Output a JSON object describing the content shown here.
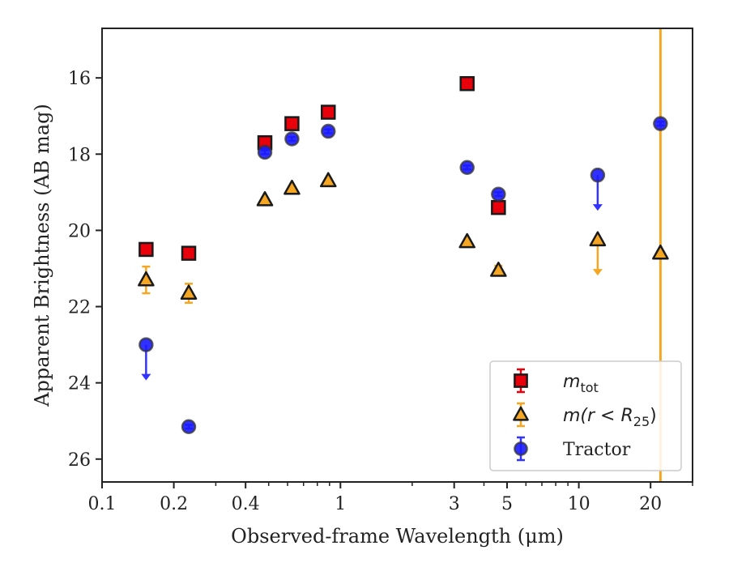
{
  "chart_data": {
    "type": "scatter",
    "xlabel": "Observed-frame Wavelength (μm)",
    "ylabel": "Apparent Brightness (AB mag)",
    "xscale": "log",
    "xlim": [
      0.1,
      30
    ],
    "ylim": [
      26.6,
      14.7
    ],
    "y_inverted": true,
    "x_ticks": [
      {
        "value": 0.1,
        "label": "0.1"
      },
      {
        "value": 0.2,
        "label": "0.2"
      },
      {
        "value": 0.4,
        "label": "0.4"
      },
      {
        "value": 1,
        "label": "1"
      },
      {
        "value": 3,
        "label": "3"
      },
      {
        "value": 5,
        "label": "5"
      },
      {
        "value": 10,
        "label": "10"
      },
      {
        "value": 20,
        "label": "20"
      }
    ],
    "x_minor_ticks": [
      0.3,
      0.5,
      0.6,
      0.7,
      0.8,
      0.9,
      2,
      4,
      6,
      7,
      8,
      9,
      30
    ],
    "y_ticks": [
      {
        "value": 16,
        "label": "16"
      },
      {
        "value": 18,
        "label": "18"
      },
      {
        "value": 20,
        "label": "20"
      },
      {
        "value": 22,
        "label": "22"
      },
      {
        "value": 24,
        "label": "24"
      },
      {
        "value": 26,
        "label": "26"
      }
    ],
    "vline": {
      "x": 22,
      "color": "#f5a623"
    },
    "legend_position": "lower right",
    "series": [
      {
        "legend_base": "m",
        "legend_sub": "tot",
        "marker": "square",
        "color": "#e8000b",
        "errcolor": "#e8000b",
        "points": [
          {
            "x": 0.153,
            "y": 20.5,
            "err": 0.05
          },
          {
            "x": 0.231,
            "y": 20.6,
            "err": 0.05
          },
          {
            "x": 0.482,
            "y": 17.7,
            "err": 0.05
          },
          {
            "x": 0.626,
            "y": 17.2,
            "err": 0.05
          },
          {
            "x": 0.889,
            "y": 16.9,
            "err": 0.05
          },
          {
            "x": 3.4,
            "y": 16.15,
            "err": 0.05
          },
          {
            "x": 4.6,
            "y": 19.4,
            "err": 0.05
          }
        ]
      },
      {
        "legend_base": "m(r < R",
        "legend_sub": "25",
        "legend_suffix": ")",
        "marker": "triangle",
        "color": "#f5a623",
        "errcolor": "#f5a623",
        "points": [
          {
            "x": 0.153,
            "y": 21.3,
            "err": 0.35
          },
          {
            "x": 0.231,
            "y": 21.65,
            "err": 0.25
          },
          {
            "x": 0.482,
            "y": 19.2,
            "err": 0.05
          },
          {
            "x": 0.626,
            "y": 18.9,
            "err": 0.05
          },
          {
            "x": 0.889,
            "y": 18.7,
            "err": 0.05
          },
          {
            "x": 3.4,
            "y": 20.3,
            "err": 0.05
          },
          {
            "x": 4.6,
            "y": 21.05,
            "err": 0.12
          },
          {
            "x": 12.0,
            "y": 20.25,
            "upper_limit": true
          },
          {
            "x": 22.0,
            "y": 20.6,
            "err": 0.05
          }
        ]
      },
      {
        "legend_base": "Tractor",
        "marker": "circle",
        "color": "#1a1aff",
        "errcolor": "#3333ff",
        "points": [
          {
            "x": 0.153,
            "y": 23.0,
            "upper_limit": true
          },
          {
            "x": 0.231,
            "y": 25.15,
            "err": 0.05
          },
          {
            "x": 0.482,
            "y": 17.95,
            "err": 0.05
          },
          {
            "x": 0.626,
            "y": 17.6,
            "err": 0.05
          },
          {
            "x": 0.889,
            "y": 17.4,
            "err": 0.05
          },
          {
            "x": 3.4,
            "y": 18.35,
            "err": 0.05
          },
          {
            "x": 4.6,
            "y": 19.05,
            "err": 0.05
          },
          {
            "x": 12.0,
            "y": 18.55,
            "upper_limit": true
          },
          {
            "x": 22.0,
            "y": 17.2,
            "err": 0.05
          }
        ]
      }
    ]
  }
}
